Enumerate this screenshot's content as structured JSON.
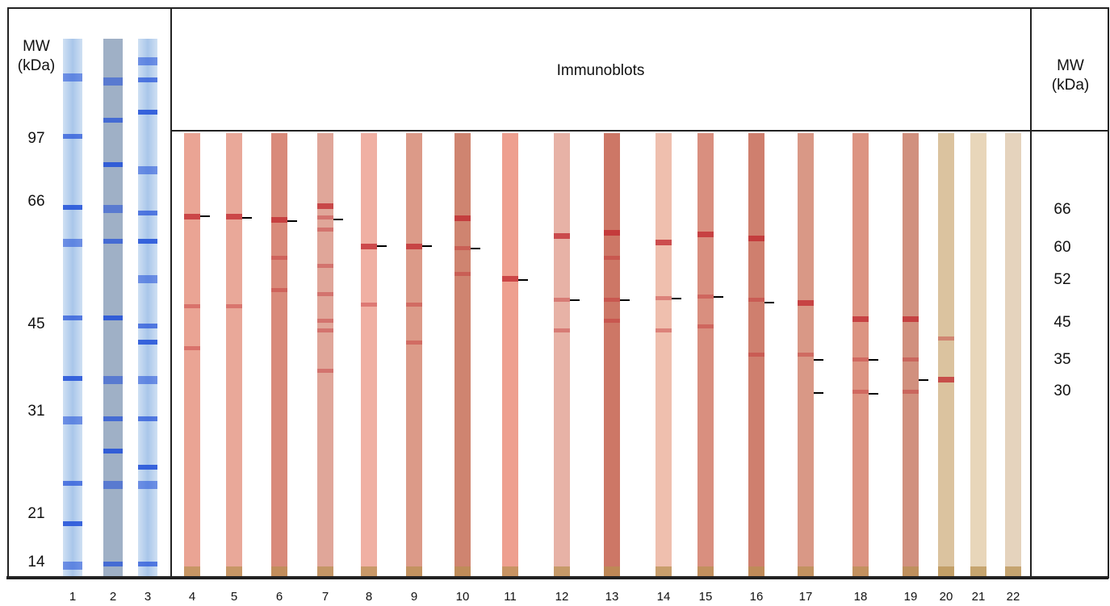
{
  "left_axis": {
    "title": [
      "MW",
      "(kDa)"
    ],
    "labels": [
      "97",
      "66",
      "45",
      "31",
      "21",
      "14"
    ]
  },
  "header": {
    "title": "Immunoblots"
  },
  "right_axis": {
    "title": [
      "MW",
      "(kDa)"
    ],
    "labels": [
      "66",
      "60",
      "52",
      "45",
      "35",
      "30"
    ]
  },
  "lanes": [
    "1",
    "2",
    "3",
    "4",
    "5",
    "6",
    "7",
    "8",
    "9",
    "10",
    "11",
    "12",
    "13",
    "14",
    "15",
    "16",
    "17",
    "18",
    "19",
    "20",
    "21",
    "22"
  ]
}
